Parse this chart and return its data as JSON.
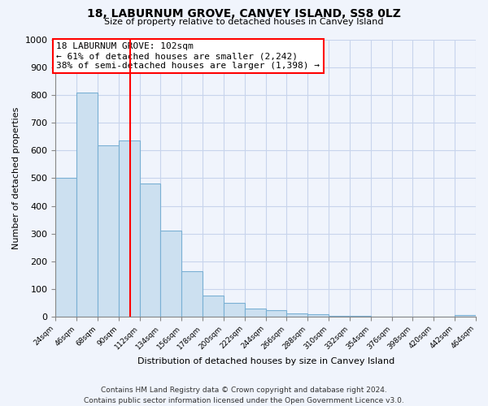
{
  "title": "18, LABURNUM GROVE, CANVEY ISLAND, SS8 0LZ",
  "subtitle": "Size of property relative to detached houses in Canvey Island",
  "xlabel": "Distribution of detached houses by size in Canvey Island",
  "ylabel": "Number of detached properties",
  "bar_color": "#cce0f0",
  "bar_edge_color": "#7ab0d4",
  "property_line_x": 102,
  "annotation_text": "18 LABURNUM GROVE: 102sqm\n← 61% of detached houses are smaller (2,242)\n38% of semi-detached houses are larger (1,398) →",
  "bins_start": [
    24,
    46,
    68,
    90,
    112,
    134,
    156,
    178,
    200,
    222,
    244,
    266,
    288,
    310,
    332,
    354,
    376,
    398,
    420,
    442
  ],
  "bin_width": 22,
  "heights": [
    500,
    808,
    618,
    635,
    480,
    310,
    163,
    76,
    48,
    30,
    22,
    12,
    7,
    3,
    2,
    1,
    1,
    0,
    0,
    5
  ],
  "ylim": [
    0,
    1000
  ],
  "yticks": [
    0,
    100,
    200,
    300,
    400,
    500,
    600,
    700,
    800,
    900,
    1000
  ],
  "xtick_labels": [
    "24sqm",
    "46sqm",
    "68sqm",
    "90sqm",
    "112sqm",
    "134sqm",
    "156sqm",
    "178sqm",
    "200sqm",
    "222sqm",
    "244sqm",
    "266sqm",
    "288sqm",
    "310sqm",
    "332sqm",
    "354sqm",
    "376sqm",
    "398sqm",
    "420sqm",
    "442sqm",
    "464sqm"
  ],
  "footer": "Contains HM Land Registry data © Crown copyright and database right 2024.\nContains public sector information licensed under the Open Government Licence v3.0.",
  "bg_color": "#f0f4fc",
  "plot_bg_color": "#f0f4fc",
  "grid_color": "#c8d4ec"
}
